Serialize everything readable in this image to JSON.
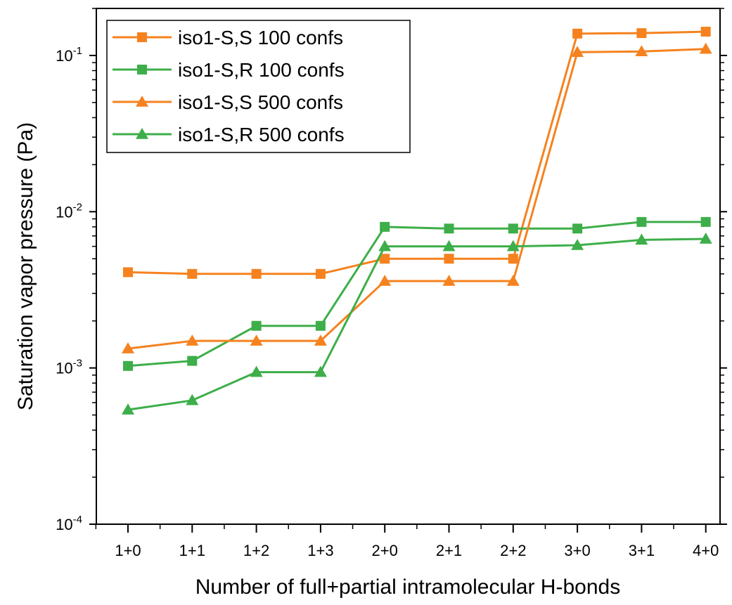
{
  "chart_data": {
    "type": "line",
    "xlabel": "Number of full+partial intramolecular H-bonds",
    "ylabel": "Saturation vapor pressure (Pa)",
    "yscale": "log",
    "ylim": [
      0.0001,
      0.2
    ],
    "categories": [
      "1+0",
      "1+1",
      "1+2",
      "1+3",
      "2+0",
      "2+1",
      "2+2",
      "3+0",
      "3+1",
      "4+0"
    ],
    "y_ticks": [
      {
        "value": 0.0001,
        "base": "10",
        "exp": "-4"
      },
      {
        "value": 0.001,
        "base": "10",
        "exp": "-3"
      },
      {
        "value": 0.01,
        "base": "10",
        "exp": "-2"
      },
      {
        "value": 0.1,
        "base": "10",
        "exp": "-1"
      }
    ],
    "legend_position": "top-left",
    "series": [
      {
        "name": "iso1-S,S 100 confs",
        "color": "#F5821F",
        "marker": "square",
        "values": [
          0.0041,
          0.004,
          0.004,
          0.004,
          0.005,
          0.005,
          0.005,
          0.138,
          0.139,
          0.142
        ]
      },
      {
        "name": "iso1-S,R 100 confs",
        "color": "#3DAE49",
        "marker": "square",
        "values": [
          0.00103,
          0.00111,
          0.00186,
          0.00186,
          0.008,
          0.0078,
          0.0078,
          0.0078,
          0.0086,
          0.0086
        ]
      },
      {
        "name": "iso1-S,S 500 confs",
        "color": "#F5821F",
        "marker": "triangle",
        "values": [
          0.00133,
          0.00149,
          0.00149,
          0.00149,
          0.0036,
          0.0036,
          0.0036,
          0.105,
          0.106,
          0.11
        ]
      },
      {
        "name": "iso1-S,R 500 confs",
        "color": "#3DAE49",
        "marker": "triangle",
        "values": [
          0.00054,
          0.00062,
          0.00094,
          0.00094,
          0.006,
          0.006,
          0.006,
          0.0061,
          0.0066,
          0.0067
        ]
      }
    ]
  }
}
